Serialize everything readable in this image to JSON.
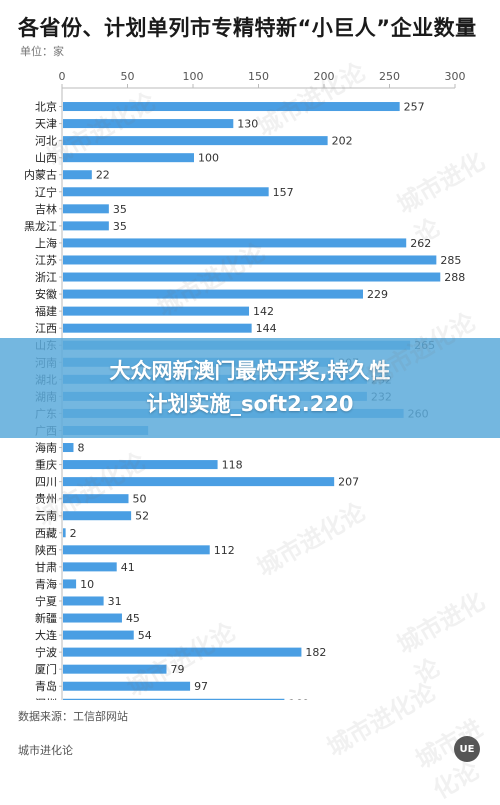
{
  "header": {
    "title": "各省份、计划单列市专精特新“小巨人”企业数量",
    "unit": "单位：家"
  },
  "footer": {
    "source": "数据来源：工信部网站",
    "brand": "城市进化论",
    "logo_text": "UE"
  },
  "overlay": {
    "line1": "大众网新澳门最快开奖,持久性",
    "line2": "计划实施_soft2.220"
  },
  "watermark_text": "城市进化论",
  "colors": {
    "bar": "#4a9ee3",
    "axis": "#bbbbbb",
    "overlay": "#5caada"
  },
  "chart_data": {
    "type": "bar",
    "orientation": "horizontal",
    "title": "各省份、计划单列市专精特新“小巨人”企业数量",
    "unit": "单位：家",
    "xlim": [
      0,
      300
    ],
    "xticks": [
      0,
      50,
      100,
      150,
      200,
      250,
      300
    ],
    "x_axis_position": "top",
    "grid": false,
    "categories": [
      "北京",
      "天津",
      "河北",
      "山西",
      "内蒙古",
      "辽宁",
      "吉林",
      "黑龙江",
      "上海",
      "江苏",
      "浙江",
      "安徽",
      "福建",
      "江西",
      "山东",
      "河南",
      "湖北",
      "湖南",
      "广东",
      "广西",
      "海南",
      "重庆",
      "四川",
      "贵州",
      "云南",
      "西藏",
      "陕西",
      "甘肃",
      "青海",
      "宁夏",
      "新疆",
      "大连",
      "宁波",
      "厦门",
      "青岛",
      "深圳"
    ],
    "values": [
      257,
      130,
      202,
      100,
      22,
      157,
      35,
      35,
      262,
      285,
      288,
      229,
      142,
      144,
      265,
      207,
      232,
      232,
      260,
      65,
      8,
      118,
      207,
      50,
      52,
      2,
      112,
      41,
      10,
      31,
      45,
      54,
      182,
      79,
      97,
      169
    ],
    "labels": [
      "257",
      "130",
      "202",
      "100",
      "22",
      "157",
      "35",
      "35",
      "262",
      "285",
      "288",
      "229",
      "142",
      "144",
      "265",
      "207",
      "232",
      "232",
      "260",
      "",
      "8",
      "118",
      "207",
      "50",
      "52",
      "2",
      "112",
      "41",
      "10",
      "31",
      "45",
      "54",
      "182",
      "79",
      "97",
      "169"
    ]
  }
}
